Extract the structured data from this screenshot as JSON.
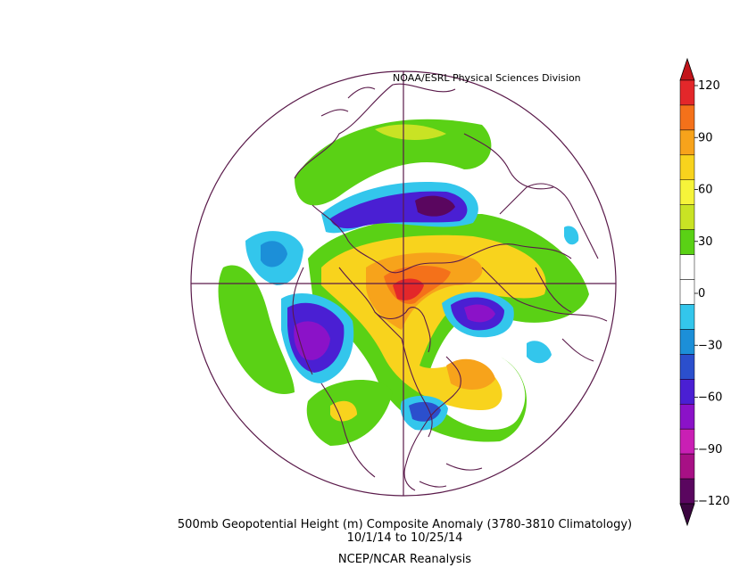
{
  "credit": "NOAA/ESRL Physical Sciences Division",
  "title": "500mb Geopotential Height (m) Composite Anomaly (3780-3810 Climatology)",
  "date_range": "10/1/14  to 10/25/14",
  "source": "NCEP/NCAR Reanalysis",
  "colorbar": {
    "ticks": [
      "120",
      "90",
      "60",
      "30",
      "0",
      "−30",
      "−60",
      "−90",
      "−120"
    ],
    "colors": [
      "#e3272a",
      "#f4711a",
      "#f7a31b",
      "#f8d31d",
      "#f6f43a",
      "#c9e324",
      "#5ad115",
      "#ffffff",
      "#ffffff",
      "#33c6ec",
      "#1c8fd8",
      "#2b4fcd",
      "#4a1fd3",
      "#8b12c8",
      "#c91fb4",
      "#a71085",
      "#5a065f"
    ]
  }
}
